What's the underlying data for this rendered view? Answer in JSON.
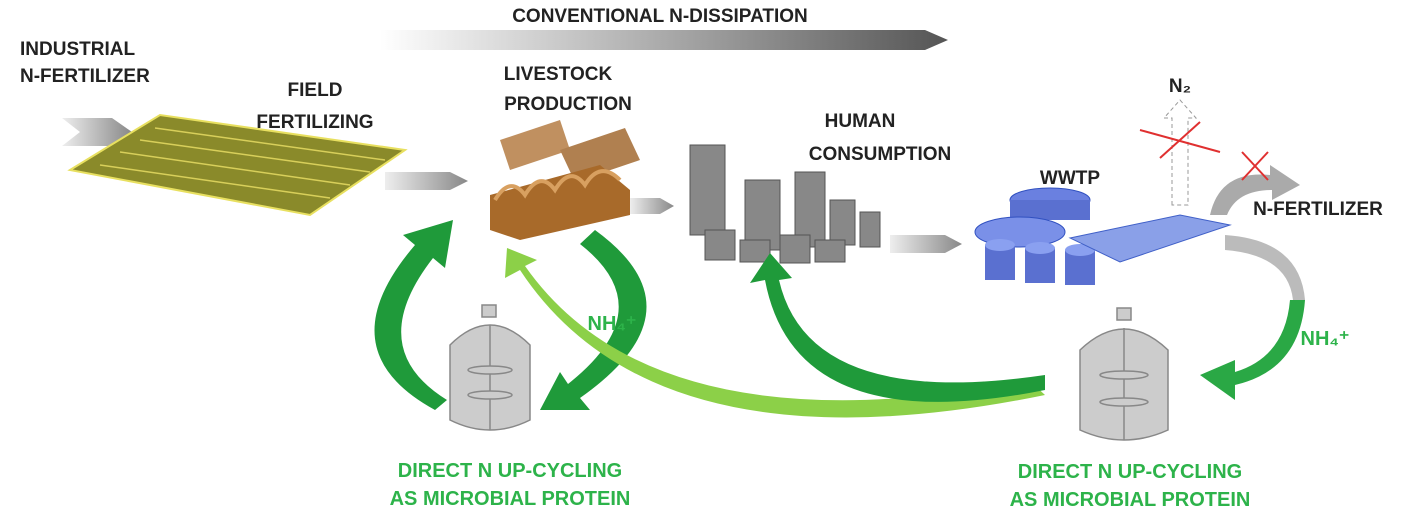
{
  "header": {
    "title": "CONVENTIONAL N-DISSIPATION"
  },
  "nodes": [
    {
      "label": [
        "INDUSTRIAL",
        "N-FERTILIZER"
      ]
    },
    {
      "label": [
        "FIELD",
        "FERTILIZING"
      ]
    },
    {
      "label": [
        "LIVESTOCK",
        "PRODUCTION"
      ]
    },
    {
      "label": [
        "HUMAN",
        "CONSUMPTION"
      ]
    },
    {
      "label": [
        "WWTP"
      ]
    },
    {
      "label": [
        "N₂"
      ]
    },
    {
      "label": [
        "N-FERTILIZER"
      ]
    }
  ],
  "flows": [
    {
      "label": "NH₄⁺"
    },
    {
      "label": "NH₄⁺"
    }
  ],
  "reactors": [
    {
      "label": [
        "DIRECT N UP-CYCLING",
        "AS MICROBIAL PROTEIN"
      ]
    },
    {
      "label": [
        "DIRECT N UP-CYCLING",
        "AS MICROBIAL PROTEIN"
      ]
    }
  ]
}
